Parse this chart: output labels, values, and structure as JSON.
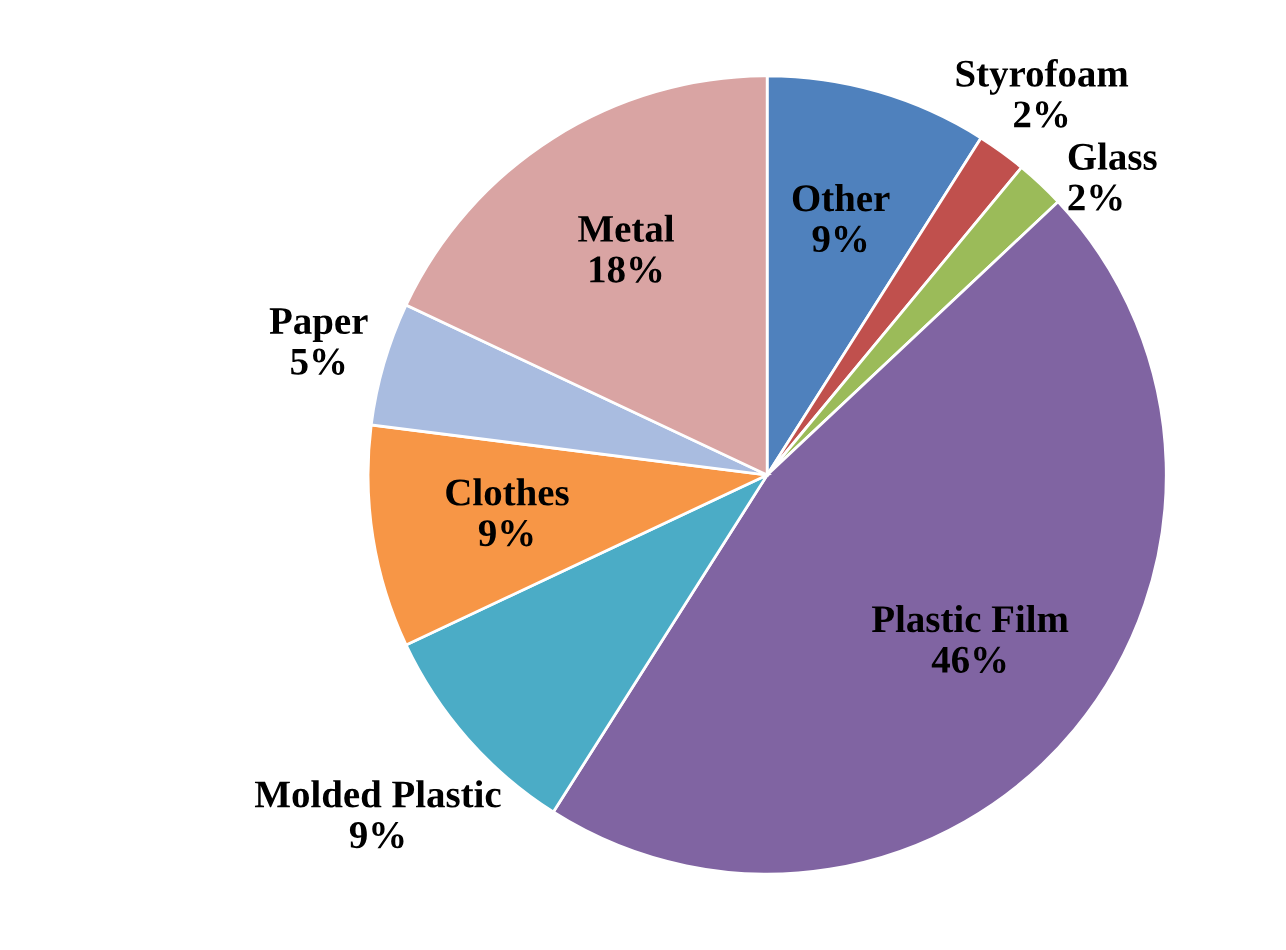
{
  "chart_data": {
    "type": "pie",
    "categories": [
      "Other",
      "Styrofoam",
      "Glass",
      "Plastic Film",
      "Molded Plastic",
      "Clothes",
      "Paper",
      "Metal"
    ],
    "values": [
      9,
      2,
      2,
      46,
      9,
      9,
      5,
      18
    ],
    "value_labels": [
      "9%",
      "2%",
      "2%",
      "46%",
      "9%",
      "9%",
      "5%",
      "18%"
    ],
    "colors": [
      "#4f81bd",
      "#c0504d",
      "#9bbb59",
      "#8064a2",
      "#4bacc6",
      "#f79646",
      "#a9bce0",
      "#d9a4a3"
    ],
    "legend": false
  }
}
